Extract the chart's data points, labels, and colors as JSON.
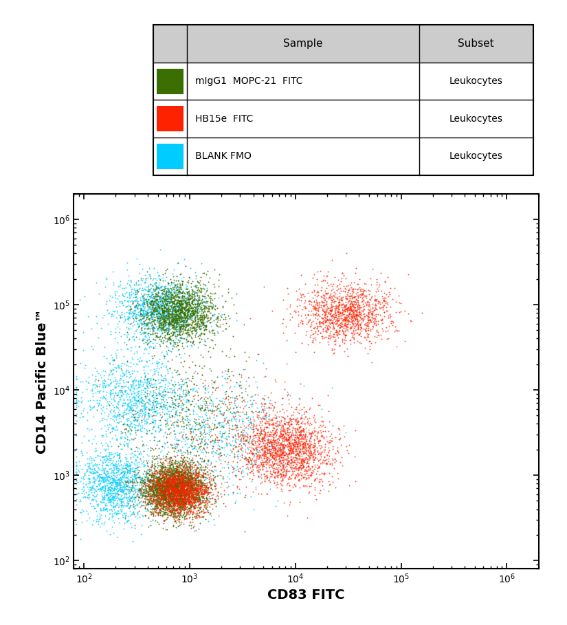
{
  "xlabel": "CD83 FITC",
  "ylabel": "CD14 Pacific Blue™",
  "xlim": [
    80,
    2000000
  ],
  "ylim": [
    80,
    2000000
  ],
  "colors": {
    "dark_green": "#3a6e00",
    "red": "#ff2200",
    "cyan": "#00ccff"
  },
  "legend": {
    "headers": [
      "",
      "Sample",
      "Subset"
    ],
    "rows": [
      {
        "color": "#3a6e00",
        "sample": "mIgG1  MOPC-21  FITC",
        "subset": "Leukocytes"
      },
      {
        "color": "#ff2200",
        "sample": "HB15e  FITC",
        "subset": "Leukocytes"
      },
      {
        "color": "#00ccff",
        "sample": "BLANK FMO",
        "subset": "Leukocytes"
      }
    ]
  },
  "seeds": {
    "dark_green": 42,
    "red": 123,
    "cyan": 7
  },
  "n_points": {
    "dark_green": 5000,
    "red": 5000,
    "cyan": 4000
  }
}
